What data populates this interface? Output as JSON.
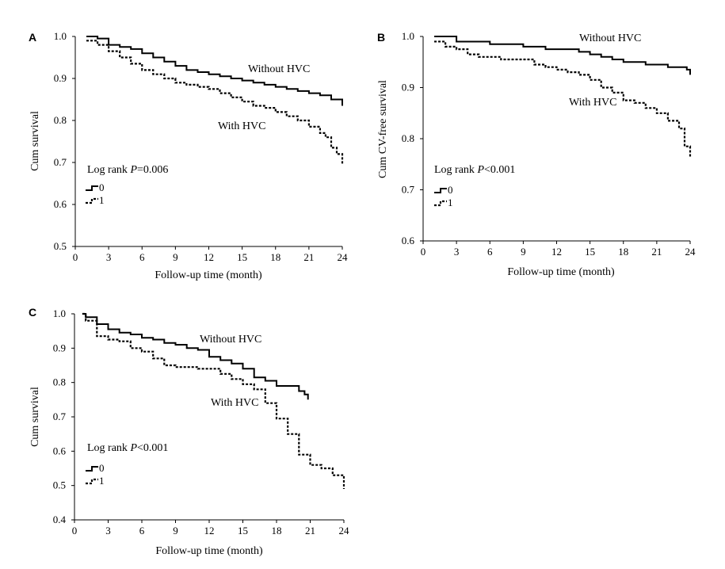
{
  "chart_data": [
    {
      "panel": "A",
      "type": "line",
      "xlabel": "Follow-up time (month)",
      "ylabel": "Cum survival",
      "xlim": [
        0,
        24
      ],
      "ylim": [
        0.5,
        1.0
      ],
      "xticks": [
        0,
        3,
        6,
        9,
        12,
        15,
        18,
        21,
        24
      ],
      "yticks": [
        0.5,
        0.6,
        0.7,
        0.8,
        0.9,
        1.0
      ],
      "ytick_labels": [
        "0.5",
        "0.6",
        "0.7",
        "0.8",
        "0.9",
        "1.0"
      ],
      "stat_prefix": "Log rank ",
      "stat_p": "P",
      "stat_value": "=0.006",
      "legend": [
        "0",
        "1"
      ],
      "series": [
        {
          "name": "Without HVC",
          "style": "solid",
          "x": [
            1,
            2,
            3,
            4,
            5,
            6,
            7,
            8,
            9,
            10,
            11,
            12,
            13,
            14,
            15,
            16,
            17,
            18,
            19,
            20,
            21,
            22,
            23,
            24
          ],
          "y": [
            1.0,
            0.995,
            0.98,
            0.975,
            0.97,
            0.96,
            0.95,
            0.94,
            0.93,
            0.92,
            0.915,
            0.91,
            0.905,
            0.9,
            0.895,
            0.89,
            0.885,
            0.88,
            0.875,
            0.87,
            0.865,
            0.86,
            0.85,
            0.835
          ]
        },
        {
          "name": "With HVC",
          "style": "dashed",
          "x": [
            1,
            2,
            3,
            4,
            5,
            6,
            7,
            8,
            9,
            10,
            11,
            12,
            13,
            14,
            15,
            16,
            17,
            18,
            19,
            20,
            21,
            22,
            22.5,
            23,
            23.5,
            24
          ],
          "y": [
            0.99,
            0.98,
            0.965,
            0.95,
            0.935,
            0.92,
            0.91,
            0.9,
            0.89,
            0.885,
            0.88,
            0.875,
            0.865,
            0.855,
            0.845,
            0.835,
            0.83,
            0.82,
            0.81,
            0.8,
            0.785,
            0.77,
            0.76,
            0.735,
            0.72,
            0.695
          ]
        }
      ],
      "annotations": [
        {
          "text": "Without HVC",
          "x": 15.5,
          "y": 0.935
        },
        {
          "text": "With HVC",
          "x": 12.9,
          "y": 0.803
        }
      ]
    },
    {
      "panel": "B",
      "type": "line",
      "xlabel": "Follow-up time (month)",
      "ylabel": "Cum CV-free survival",
      "xlim": [
        0,
        24
      ],
      "ylim": [
        0.6,
        1.0
      ],
      "xticks": [
        0,
        3,
        6,
        9,
        12,
        15,
        18,
        21,
        24
      ],
      "yticks": [
        0.6,
        0.7,
        0.8,
        0.9,
        1.0
      ],
      "ytick_labels": [
        "0.6",
        "0.7",
        "0.8",
        "0.9",
        "1.0"
      ],
      "stat_prefix": "Log rank ",
      "stat_p": "P",
      "stat_value": "<0.001",
      "legend": [
        "0",
        "1"
      ],
      "series": [
        {
          "name": "Without HVC",
          "style": "solid",
          "x": [
            1,
            2.5,
            3,
            6,
            9,
            11,
            13,
            14,
            15,
            16,
            17,
            18,
            20,
            22,
            23,
            23.7,
            24
          ],
          "y": [
            1.0,
            1.0,
            0.99,
            0.985,
            0.98,
            0.975,
            0.975,
            0.97,
            0.965,
            0.96,
            0.955,
            0.95,
            0.945,
            0.94,
            0.94,
            0.935,
            0.925
          ]
        },
        {
          "name": "With HVC",
          "style": "dashed",
          "x": [
            1,
            2,
            3,
            4,
            5,
            6,
            7,
            8,
            9,
            10,
            11,
            12,
            13,
            14,
            15,
            16,
            17,
            18,
            19,
            20,
            21,
            22,
            23,
            23.5,
            24
          ],
          "y": [
            0.99,
            0.98,
            0.975,
            0.965,
            0.96,
            0.96,
            0.955,
            0.955,
            0.955,
            0.945,
            0.94,
            0.935,
            0.93,
            0.925,
            0.915,
            0.9,
            0.89,
            0.875,
            0.87,
            0.86,
            0.85,
            0.835,
            0.82,
            0.785,
            0.765
          ]
        }
      ],
      "annotations": [
        {
          "text": "Without HVC",
          "x": 14.2,
          "y": 0.99
        },
        {
          "text": "With HVC",
          "x": 13,
          "y": 0.866
        }
      ]
    },
    {
      "panel": "C",
      "type": "line",
      "xlabel": "Follow-up time (month)",
      "ylabel": "Cum survival",
      "xlim": [
        0,
        24
      ],
      "ylim": [
        0.4,
        1.0
      ],
      "xticks": [
        0,
        3,
        6,
        9,
        12,
        15,
        18,
        21,
        24
      ],
      "yticks": [
        0.4,
        0.5,
        0.6,
        0.7,
        0.8,
        0.9,
        1.0
      ],
      "ytick_labels": [
        "0.4",
        "0.5",
        "0.6",
        "0.7",
        "0.8",
        "0.9",
        "1.0"
      ],
      "stat_prefix": "Log rank ",
      "stat_p": "P",
      "stat_value": "<0.001",
      "legend": [
        "0",
        "1"
      ],
      "series": [
        {
          "name": "Without HVC",
          "style": "solid",
          "x": [
            0.7,
            1,
            2,
            3,
            4,
            5,
            6,
            7,
            8,
            9,
            10,
            11,
            12,
            13,
            14,
            15,
            16,
            17,
            18,
            19,
            20,
            20.5,
            20.8
          ],
          "y": [
            1.0,
            0.99,
            0.97,
            0.955,
            0.945,
            0.94,
            0.93,
            0.925,
            0.915,
            0.91,
            0.9,
            0.895,
            0.875,
            0.865,
            0.855,
            0.84,
            0.815,
            0.805,
            0.79,
            0.79,
            0.775,
            0.765,
            0.75
          ]
        },
        {
          "name": "With HVC",
          "style": "dashed",
          "x": [
            0.7,
            1,
            2,
            3,
            4,
            5,
            6,
            7,
            8,
            9,
            10,
            11,
            12,
            13,
            14,
            15,
            16,
            17,
            18,
            19,
            20,
            21,
            22,
            23,
            24
          ],
          "y": [
            1.0,
            0.98,
            0.935,
            0.925,
            0.92,
            0.9,
            0.89,
            0.87,
            0.85,
            0.845,
            0.845,
            0.84,
            0.84,
            0.825,
            0.81,
            0.795,
            0.78,
            0.74,
            0.695,
            0.65,
            0.59,
            0.56,
            0.55,
            0.53,
            0.49
          ]
        }
      ],
      "annotations": [
        {
          "text": "Without HVC",
          "x": 11.4,
          "y": 0.92
        },
        {
          "text": "With HVC",
          "x": 12.2,
          "y": 0.797
        }
      ]
    }
  ]
}
